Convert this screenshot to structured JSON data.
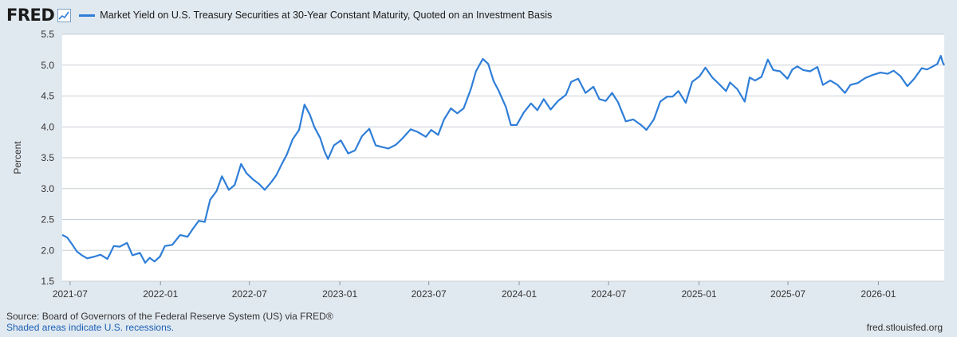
{
  "header": {
    "logo_text": "FRED",
    "logo_icon": "line-chart-icon",
    "series_label": "Market Yield on U.S. Treasury Securities at 30-Year Constant Maturity, Quoted on an Investment Basis"
  },
  "footer": {
    "source": "Source: Board of Governors of the Federal Reserve System (US) via FRED®",
    "recession_note": "Shaded areas indicate U.S. recessions.",
    "site": "fred.stlouisfed.org"
  },
  "colors": {
    "line": "#2f7ed8",
    "grid": "#c9cfd6",
    "background": "#e1e9f0",
    "plot_background": "#ffffff"
  },
  "chart_data": {
    "type": "line",
    "title": "",
    "xlabel": "",
    "ylabel": "Percent",
    "ylim": [
      1.5,
      5.5
    ],
    "xlim": [
      "2021-06-15",
      "2026-05-15"
    ],
    "y_ticks": [
      1.5,
      2.0,
      2.5,
      3.0,
      3.5,
      4.0,
      4.5,
      5.0,
      5.5
    ],
    "y_tick_labels": [
      "1.5",
      "2.0",
      "2.5",
      "3.0",
      "3.5",
      "4.0",
      "4.5",
      "5.0",
      "5.5"
    ],
    "x_ticks": [
      "2021-07-01",
      "2022-01-01",
      "2022-07-01",
      "2023-01-01",
      "2023-07-01",
      "2024-01-01",
      "2024-07-01",
      "2025-01-01",
      "2025-07-01",
      "2026-01-01"
    ],
    "x_tick_labels": [
      "2021-07",
      "2022-01",
      "2022-07",
      "2023-01",
      "2023-07",
      "2024-01",
      "2024-07",
      "2025-01",
      "2025-07",
      "2026-01"
    ],
    "grid": "horizontal",
    "legend": "top-left",
    "series": [
      {
        "name": "Market Yield on U.S. Treasury Securities at 30-Year Constant Maturity, Quoted on an Investment Basis",
        "points": [
          [
            "2021-06-15",
            2.25
          ],
          [
            "2021-06-25",
            2.21
          ],
          [
            "2021-07-05",
            2.1
          ],
          [
            "2021-07-15",
            1.98
          ],
          [
            "2021-07-25",
            1.92
          ],
          [
            "2021-08-05",
            1.87
          ],
          [
            "2021-08-20",
            1.9
          ],
          [
            "2021-09-01",
            1.93
          ],
          [
            "2021-09-15",
            1.86
          ],
          [
            "2021-09-28",
            2.07
          ],
          [
            "2021-10-10",
            2.06
          ],
          [
            "2021-10-25",
            2.12
          ],
          [
            "2021-11-05",
            1.92
          ],
          [
            "2021-11-20",
            1.96
          ],
          [
            "2021-12-01",
            1.8
          ],
          [
            "2021-12-10",
            1.88
          ],
          [
            "2021-12-20",
            1.82
          ],
          [
            "2021-12-31",
            1.9
          ],
          [
            "2022-01-10",
            2.07
          ],
          [
            "2022-01-25",
            2.09
          ],
          [
            "2022-02-10",
            2.25
          ],
          [
            "2022-02-25",
            2.22
          ],
          [
            "2022-03-08",
            2.35
          ],
          [
            "2022-03-20",
            2.48
          ],
          [
            "2022-04-01",
            2.46
          ],
          [
            "2022-04-12",
            2.82
          ],
          [
            "2022-04-25",
            2.96
          ],
          [
            "2022-05-06",
            3.2
          ],
          [
            "2022-05-20",
            2.98
          ],
          [
            "2022-06-01",
            3.06
          ],
          [
            "2022-06-14",
            3.4
          ],
          [
            "2022-06-25",
            3.25
          ],
          [
            "2022-07-08",
            3.15
          ],
          [
            "2022-07-20",
            3.08
          ],
          [
            "2022-08-01",
            2.98
          ],
          [
            "2022-08-15",
            3.11
          ],
          [
            "2022-08-25",
            3.22
          ],
          [
            "2022-09-05",
            3.4
          ],
          [
            "2022-09-15",
            3.55
          ],
          [
            "2022-09-27",
            3.8
          ],
          [
            "2022-10-10",
            3.95
          ],
          [
            "2022-10-21",
            4.36
          ],
          [
            "2022-11-01",
            4.2
          ],
          [
            "2022-11-10",
            4.0
          ],
          [
            "2022-11-22",
            3.82
          ],
          [
            "2022-12-01",
            3.6
          ],
          [
            "2022-12-08",
            3.48
          ],
          [
            "2022-12-20",
            3.7
          ],
          [
            "2023-01-03",
            3.78
          ],
          [
            "2023-01-18",
            3.57
          ],
          [
            "2023-02-01",
            3.62
          ],
          [
            "2023-02-15",
            3.85
          ],
          [
            "2023-03-02",
            3.97
          ],
          [
            "2023-03-15",
            3.7
          ],
          [
            "2023-03-30",
            3.67
          ],
          [
            "2023-04-10",
            3.65
          ],
          [
            "2023-04-25",
            3.71
          ],
          [
            "2023-05-08",
            3.81
          ],
          [
            "2023-05-25",
            3.96
          ],
          [
            "2023-06-08",
            3.92
          ],
          [
            "2023-06-25",
            3.84
          ],
          [
            "2023-07-06",
            3.95
          ],
          [
            "2023-07-20",
            3.87
          ],
          [
            "2023-08-01",
            4.12
          ],
          [
            "2023-08-15",
            4.3
          ],
          [
            "2023-08-28",
            4.22
          ],
          [
            "2023-09-10",
            4.3
          ],
          [
            "2023-09-25",
            4.62
          ],
          [
            "2023-10-05",
            4.9
          ],
          [
            "2023-10-19",
            5.1
          ],
          [
            "2023-10-30",
            5.02
          ],
          [
            "2023-11-10",
            4.74
          ],
          [
            "2023-11-20",
            4.59
          ],
          [
            "2023-12-05",
            4.32
          ],
          [
            "2023-12-15",
            4.03
          ],
          [
            "2023-12-27",
            4.03
          ],
          [
            "2024-01-10",
            4.23
          ],
          [
            "2024-01-25",
            4.38
          ],
          [
            "2024-02-07",
            4.27
          ],
          [
            "2024-02-20",
            4.45
          ],
          [
            "2024-03-05",
            4.28
          ],
          [
            "2024-03-20",
            4.42
          ],
          [
            "2024-04-05",
            4.52
          ],
          [
            "2024-04-16",
            4.73
          ],
          [
            "2024-04-30",
            4.78
          ],
          [
            "2024-05-15",
            4.55
          ],
          [
            "2024-05-31",
            4.65
          ],
          [
            "2024-06-12",
            4.45
          ],
          [
            "2024-06-25",
            4.42
          ],
          [
            "2024-07-08",
            4.55
          ],
          [
            "2024-07-20",
            4.4
          ],
          [
            "2024-08-05",
            4.09
          ],
          [
            "2024-08-20",
            4.12
          ],
          [
            "2024-09-05",
            4.03
          ],
          [
            "2024-09-16",
            3.95
          ],
          [
            "2024-10-01",
            4.12
          ],
          [
            "2024-10-14",
            4.41
          ],
          [
            "2024-10-28",
            4.49
          ],
          [
            "2024-11-08",
            4.49
          ],
          [
            "2024-11-20",
            4.58
          ],
          [
            "2024-12-05",
            4.39
          ],
          [
            "2024-12-18",
            4.73
          ],
          [
            "2025-01-02",
            4.82
          ],
          [
            "2025-01-14",
            4.96
          ],
          [
            "2025-01-28",
            4.8
          ],
          [
            "2025-02-10",
            4.7
          ],
          [
            "2025-02-25",
            4.58
          ],
          [
            "2025-03-05",
            4.72
          ],
          [
            "2025-03-20",
            4.61
          ],
          [
            "2025-04-04",
            4.41
          ],
          [
            "2025-04-14",
            4.8
          ],
          [
            "2025-04-25",
            4.75
          ],
          [
            "2025-05-08",
            4.81
          ],
          [
            "2025-05-21",
            5.09
          ],
          [
            "2025-06-01",
            4.92
          ],
          [
            "2025-06-15",
            4.9
          ],
          [
            "2025-06-30",
            4.78
          ],
          [
            "2025-07-10",
            4.93
          ],
          [
            "2025-07-20",
            4.98
          ],
          [
            "2025-08-01",
            4.92
          ],
          [
            "2025-08-15",
            4.9
          ],
          [
            "2025-08-30",
            4.97
          ],
          [
            "2025-09-10",
            4.68
          ],
          [
            "2025-09-25",
            4.75
          ],
          [
            "2025-10-10",
            4.68
          ],
          [
            "2025-10-25",
            4.55
          ],
          [
            "2025-11-05",
            4.68
          ],
          [
            "2025-11-20",
            4.71
          ],
          [
            "2025-12-05",
            4.79
          ],
          [
            "2025-12-20",
            4.84
          ],
          [
            "2026-01-05",
            4.88
          ],
          [
            "2026-01-20",
            4.86
          ],
          [
            "2026-02-01",
            4.91
          ],
          [
            "2026-02-15",
            4.82
          ],
          [
            "2026-03-01",
            4.66
          ],
          [
            "2026-03-15",
            4.78
          ],
          [
            "2026-03-30",
            4.95
          ],
          [
            "2026-04-10",
            4.93
          ],
          [
            "2026-04-22",
            4.98
          ],
          [
            "2026-05-01",
            5.02
          ],
          [
            "2026-05-08",
            5.15
          ],
          [
            "2026-05-12",
            5.04
          ],
          [
            "2026-05-15",
            5.0
          ]
        ]
      }
    ]
  }
}
